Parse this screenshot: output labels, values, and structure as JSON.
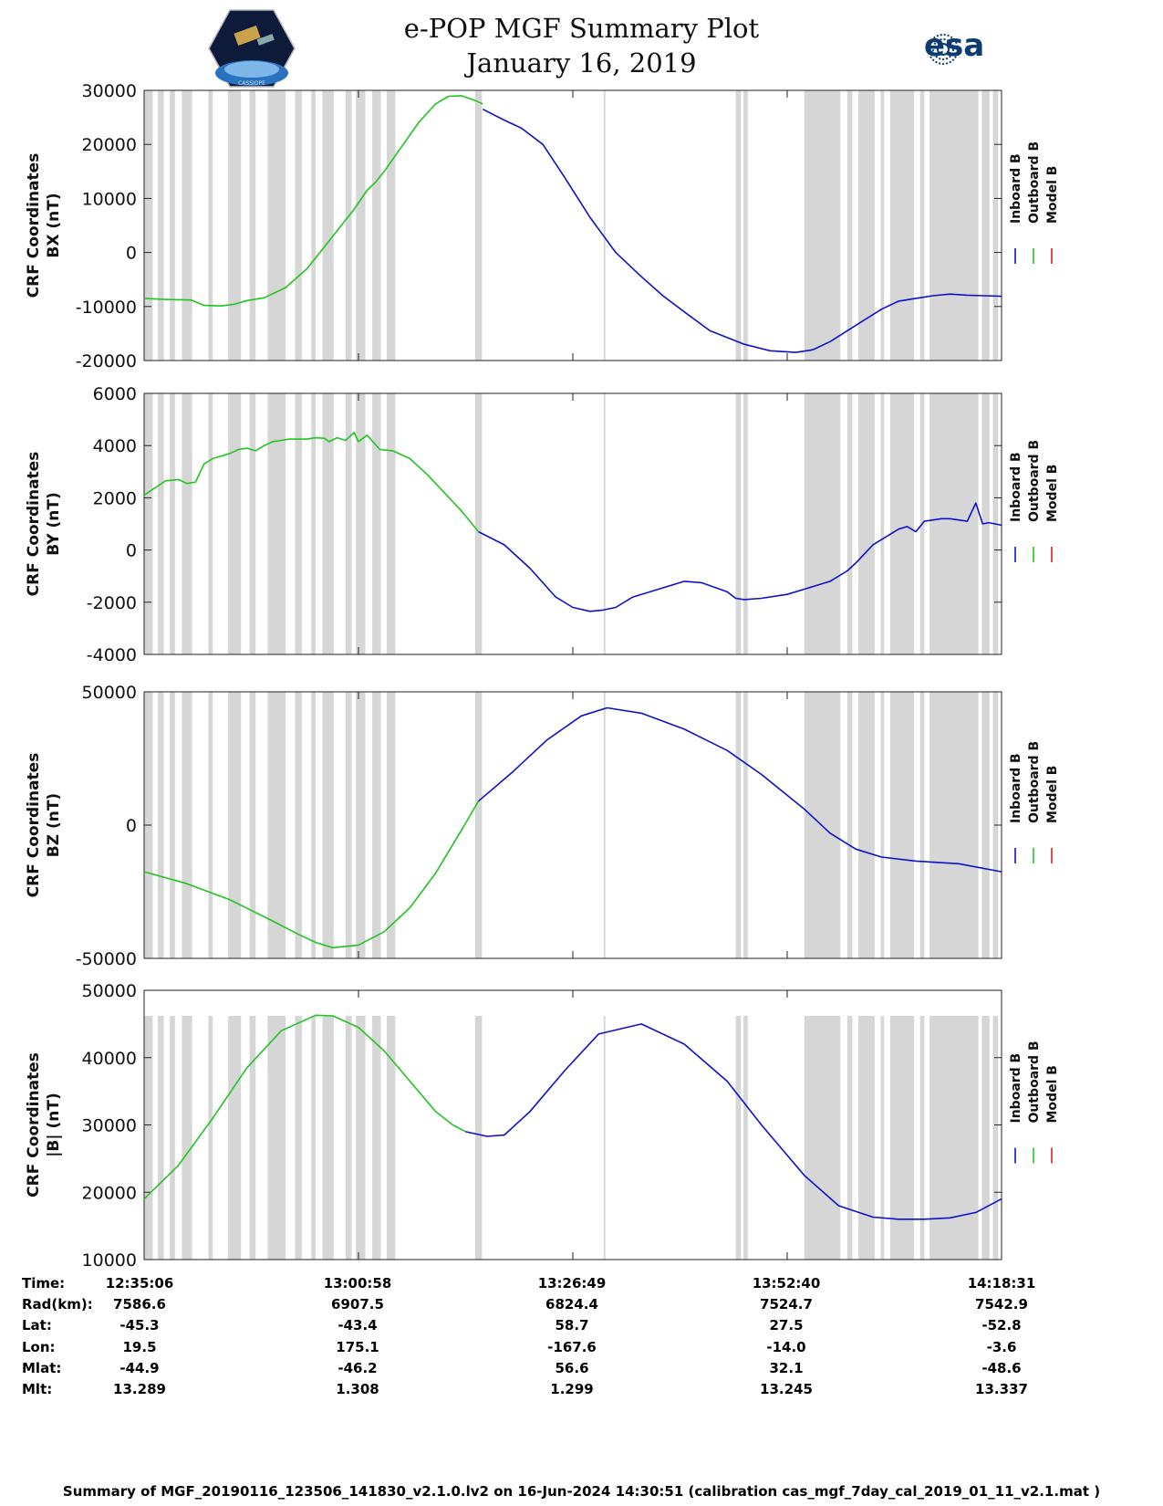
{
  "title": "e-POP MGF Summary Plot",
  "date": "January 16, 2019",
  "esa_logo_text": "esa",
  "left_logo_text": "CASSIOPE",
  "legend": {
    "labels": [
      "Inboard B",
      "Outboard B",
      "Model B"
    ],
    "colors": [
      "#1010cc",
      "#22c422",
      "#e02020"
    ]
  },
  "colors": {
    "inboard": "#1010cc",
    "outboard": "#22c422",
    "model": "#e02020",
    "gap": "#d6d6d6"
  },
  "chart_data": [
    {
      "type": "line",
      "ylabel": [
        "CRF Coordinates",
        "BX (nT)"
      ],
      "ylim": [
        -20000,
        30000
      ],
      "yticks": [
        -20000,
        -10000,
        0,
        10000,
        20000,
        30000
      ],
      "xlim": [
        0,
        100
      ],
      "series": [
        {
          "name": "Outboard B",
          "x": [
            0,
            2.5,
            5.5,
            7,
            9,
            10.5,
            12,
            14,
            16.5,
            19,
            21,
            22.5,
            24.5,
            26,
            27,
            28,
            30,
            32,
            34,
            35.5,
            37,
            38.5,
            39.5
          ],
          "values": [
            -8500,
            -8700,
            -8800,
            -9800,
            -9900,
            -9600,
            -8900,
            -8400,
            -6500,
            -3000,
            1000,
            4000,
            8000,
            11500,
            13000,
            15000,
            19500,
            24000,
            27500,
            28900,
            29000,
            28200,
            27500
          ]
        },
        {
          "name": "Inboard B",
          "x": [
            39.5,
            42,
            44,
            46.5,
            49,
            52,
            55,
            58,
            60.5,
            63,
            66,
            70,
            73,
            76,
            78,
            80,
            82,
            84,
            86,
            88,
            90,
            92,
            94,
            96,
            98,
            100
          ],
          "values": [
            26500,
            24500,
            23000,
            20000,
            14000,
            6500,
            0,
            -4500,
            -8000,
            -11000,
            -14500,
            -17000,
            -18200,
            -18500,
            -18000,
            -16500,
            -14500,
            -12500,
            -10500,
            -9000,
            -8500,
            -8000,
            -7700,
            -7900,
            -8000,
            -8100
          ]
        }
      ]
    },
    {
      "type": "line",
      "ylabel": [
        "CRF Coordinates",
        "BY (nT)"
      ],
      "ylim": [
        -4000,
        6000
      ],
      "yticks": [
        -4000,
        -2000,
        0,
        2000,
        4000,
        6000
      ],
      "xlim": [
        0,
        100
      ],
      "series": [
        {
          "name": "Outboard B",
          "x": [
            0,
            2.5,
            4,
            5,
            6,
            7,
            8,
            9,
            10,
            11,
            12,
            13,
            14,
            15,
            16,
            17,
            18,
            19,
            20,
            21,
            21.6,
            22.5,
            23.5,
            24.5,
            25,
            26,
            27.5,
            29,
            31,
            33,
            35,
            37,
            39
          ],
          "values": [
            2100,
            2650,
            2700,
            2550,
            2600,
            3300,
            3500,
            3600,
            3700,
            3850,
            3900,
            3800,
            4000,
            4150,
            4200,
            4250,
            4250,
            4250,
            4300,
            4280,
            4150,
            4300,
            4200,
            4500,
            4150,
            4400,
            3850,
            3800,
            3500,
            2900,
            2200,
            1500,
            700
          ]
        },
        {
          "name": "Inboard B",
          "x": [
            39,
            42,
            45,
            48,
            50,
            52,
            53.5,
            55,
            57,
            59,
            61,
            63,
            65,
            68,
            69,
            70,
            72,
            75,
            77,
            80,
            82,
            83,
            85,
            87,
            88,
            89,
            90,
            91,
            92,
            93,
            94,
            95,
            96,
            97,
            97.8,
            98.5,
            100
          ],
          "values": [
            700,
            200,
            -700,
            -1800,
            -2200,
            -2350,
            -2300,
            -2200,
            -1800,
            -1600,
            -1400,
            -1200,
            -1250,
            -1600,
            -1850,
            -1900,
            -1850,
            -1700,
            -1500,
            -1200,
            -800,
            -500,
            200,
            600,
            800,
            900,
            700,
            1100,
            1150,
            1200,
            1200,
            1150,
            1100,
            1800,
            1000,
            1050,
            950
          ]
        }
      ]
    },
    {
      "type": "line",
      "ylabel": [
        "CRF Coordinates",
        "BZ (nT)"
      ],
      "ylim": [
        -50000,
        50000
      ],
      "yticks": [
        -50000,
        0,
        50000
      ],
      "xlim": [
        0,
        100
      ],
      "series": [
        {
          "name": "Outboard B",
          "x": [
            0,
            5,
            10,
            15,
            18,
            20,
            22,
            25,
            28,
            31,
            34,
            37,
            39
          ],
          "values": [
            -17500,
            -22000,
            -28000,
            -36000,
            -41000,
            -44000,
            -46000,
            -45000,
            -40000,
            -31000,
            -18000,
            -2000,
            9000
          ]
        },
        {
          "name": "Inboard B",
          "x": [
            39,
            43,
            47,
            51,
            54,
            58,
            63,
            68,
            72,
            77,
            80,
            83,
            86,
            90,
            95,
            100
          ],
          "values": [
            9000,
            20000,
            32000,
            41000,
            44000,
            42000,
            36000,
            28000,
            19000,
            6000,
            -3000,
            -9000,
            -12000,
            -13500,
            -14500,
            -17500
          ]
        }
      ]
    },
    {
      "type": "line",
      "ylabel": [
        "CRF Coordinates",
        "|B| (nT)"
      ],
      "ylim": [
        10000,
        50000
      ],
      "yticks": [
        10000,
        20000,
        30000,
        40000,
        50000
      ],
      "xlim": [
        0,
        100
      ],
      "series": [
        {
          "name": "Outboard B",
          "x": [
            0,
            4,
            8,
            12,
            16,
            20,
            22,
            25,
            28,
            31,
            34,
            36,
            37.5
          ],
          "values": [
            19000,
            24000,
            31000,
            38500,
            44000,
            46300,
            46200,
            44500,
            41000,
            36500,
            32000,
            30000,
            29000
          ]
        },
        {
          "name": "Inboard B",
          "x": [
            37.5,
            40,
            42,
            45,
            49,
            53,
            58,
            63,
            68,
            72,
            77,
            81,
            85,
            88,
            91,
            94,
            97,
            100
          ],
          "values": [
            29000,
            28300,
            28500,
            32000,
            38000,
            43500,
            45000,
            42000,
            36500,
            30000,
            22500,
            18000,
            16300,
            16000,
            16000,
            16200,
            17000,
            19000
          ]
        }
      ]
    }
  ],
  "table": {
    "labels": [
      "Time:",
      "Rad(km):",
      "Lat:",
      "Lon:",
      "Mlat:",
      "Mlt:"
    ],
    "columns": [
      [
        "12:35:06",
        "7586.6",
        "-45.3",
        "19.5",
        "-44.9",
        "13.289"
      ],
      [
        "13:00:58",
        "6907.5",
        "-43.4",
        "175.1",
        "-46.2",
        "1.308"
      ],
      [
        "13:26:49",
        "6824.4",
        "58.7",
        "-167.6",
        "56.6",
        "1.299"
      ],
      [
        "13:52:40",
        "7524.7",
        "27.5",
        "-14.0",
        "32.1",
        "13.245"
      ],
      [
        "14:18:31",
        "7542.9",
        "-52.8",
        "-3.6",
        "-48.6",
        "13.337"
      ]
    ]
  },
  "footer": "Summary of MGF_20190116_123506_141830_v2.1.0.lv2 on 16-Jun-2024 14:30:51 (calibration cas_mgf_7day_cal_2019_01_11_v2.1.mat )"
}
